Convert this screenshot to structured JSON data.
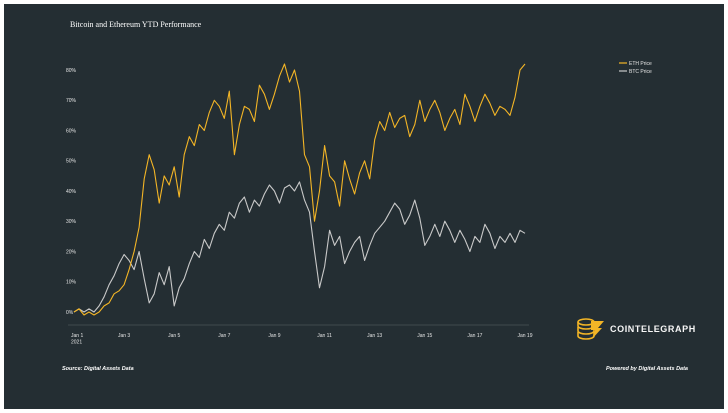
{
  "chart_data": {
    "type": "line",
    "title": "Bitcoin and Ethereum YTD Performance",
    "x_tick_labels": [
      "Jan 1\n2021",
      "Jan 3",
      "Jan 5",
      "Jan 7",
      "Jan 9",
      "Jan 11",
      "Jan 13",
      "Jan 15",
      "Jan 17",
      "Jan 19"
    ],
    "x_ticks": [
      1,
      3,
      5,
      7,
      9,
      11,
      13,
      15,
      17,
      19
    ],
    "xlim": [
      1,
      19
    ],
    "ylim": [
      -2,
      82
    ],
    "y_ticks": [
      0,
      10,
      20,
      30,
      40,
      50,
      60,
      70,
      80
    ],
    "y_tick_labels": [
      "0%",
      "10%",
      "20%",
      "30%",
      "40%",
      "50%",
      "60%",
      "70%",
      "80%"
    ],
    "legend_position": "top-right",
    "grid": false,
    "series": [
      {
        "name": "ETH Price",
        "color": "#f3b526",
        "x": [
          1.0,
          1.2,
          1.4,
          1.6,
          1.8,
          2.0,
          2.2,
          2.4,
          2.6,
          2.8,
          3.0,
          3.2,
          3.4,
          3.6,
          3.8,
          4.0,
          4.2,
          4.4,
          4.6,
          4.8,
          5.0,
          5.2,
          5.4,
          5.6,
          5.8,
          6.0,
          6.2,
          6.4,
          6.6,
          6.8,
          7.0,
          7.2,
          7.4,
          7.6,
          7.8,
          8.0,
          8.2,
          8.4,
          8.6,
          8.8,
          9.0,
          9.2,
          9.4,
          9.6,
          9.8,
          10.0,
          10.2,
          10.4,
          10.6,
          10.8,
          11.0,
          11.2,
          11.4,
          11.6,
          11.8,
          12.0,
          12.2,
          12.4,
          12.6,
          12.8,
          13.0,
          13.2,
          13.4,
          13.6,
          13.8,
          14.0,
          14.2,
          14.4,
          14.6,
          14.8,
          15.0,
          15.2,
          15.4,
          15.6,
          15.8,
          16.0,
          16.2,
          16.4,
          16.6,
          16.8,
          17.0,
          17.2,
          17.4,
          17.6,
          17.8,
          18.0,
          18.2,
          18.4,
          18.6,
          18.8,
          19.0
        ],
        "y": [
          0,
          1,
          -1,
          0,
          -1,
          0,
          2,
          3,
          6,
          7,
          9,
          14,
          20,
          28,
          44,
          52,
          47,
          36,
          45,
          42,
          48,
          38,
          52,
          58,
          55,
          62,
          60,
          66,
          70,
          68,
          64,
          73,
          52,
          62,
          68,
          67,
          63,
          75,
          72,
          67,
          72,
          78,
          82,
          76,
          80,
          73,
          52,
          48,
          30,
          40,
          55,
          45,
          43,
          35,
          50,
          44,
          39,
          46,
          50,
          44,
          57,
          63,
          60,
          66,
          61,
          64,
          65,
          58,
          62,
          70,
          63,
          67,
          70,
          66,
          60,
          64,
          67,
          62,
          72,
          68,
          63,
          68,
          72,
          69,
          65,
          68,
          67,
          65,
          71,
          80,
          82
        ]
      },
      {
        "name": "BTC Price",
        "color": "#c9c9c9",
        "x": [
          1.0,
          1.2,
          1.4,
          1.6,
          1.8,
          2.0,
          2.2,
          2.4,
          2.6,
          2.8,
          3.0,
          3.2,
          3.4,
          3.6,
          3.8,
          4.0,
          4.2,
          4.4,
          4.6,
          4.8,
          5.0,
          5.2,
          5.4,
          5.6,
          5.8,
          6.0,
          6.2,
          6.4,
          6.6,
          6.8,
          7.0,
          7.2,
          7.4,
          7.6,
          7.8,
          8.0,
          8.2,
          8.4,
          8.6,
          8.8,
          9.0,
          9.2,
          9.4,
          9.6,
          9.8,
          10.0,
          10.2,
          10.4,
          10.6,
          10.8,
          11.0,
          11.2,
          11.4,
          11.6,
          11.8,
          12.0,
          12.2,
          12.4,
          12.6,
          12.8,
          13.0,
          13.2,
          13.4,
          13.6,
          13.8,
          14.0,
          14.2,
          14.4,
          14.6,
          14.8,
          15.0,
          15.2,
          15.4,
          15.6,
          15.8,
          16.0,
          16.2,
          16.4,
          16.6,
          16.8,
          17.0,
          17.2,
          17.4,
          17.6,
          17.8,
          18.0,
          18.2,
          18.4,
          18.6,
          18.8,
          19.0
        ],
        "y": [
          0,
          1,
          0,
          1,
          0,
          2,
          5,
          9,
          12,
          16,
          19,
          17,
          14,
          20,
          11,
          3,
          6,
          13,
          9,
          15,
          2,
          8,
          11,
          16,
          20,
          18,
          24,
          21,
          26,
          29,
          27,
          33,
          31,
          36,
          38,
          33,
          37,
          35,
          39,
          42,
          40,
          36,
          41,
          42,
          40,
          43,
          37,
          33,
          20,
          8,
          15,
          27,
          22,
          25,
          16,
          20,
          23,
          25,
          17,
          22,
          26,
          28,
          30,
          33,
          36,
          34,
          29,
          32,
          37,
          31,
          22,
          25,
          29,
          25,
          30,
          27,
          23,
          27,
          24,
          20,
          25,
          23,
          29,
          26,
          21,
          25,
          23,
          26,
          23,
          27,
          26
        ]
      }
    ],
    "source": "Source: Digital Assets Data",
    "powered_by": "Powered by Digital Assets Data",
    "brand": "COINTELEGRAPH",
    "brand_icon": "cointelegraph-logo-icon"
  }
}
